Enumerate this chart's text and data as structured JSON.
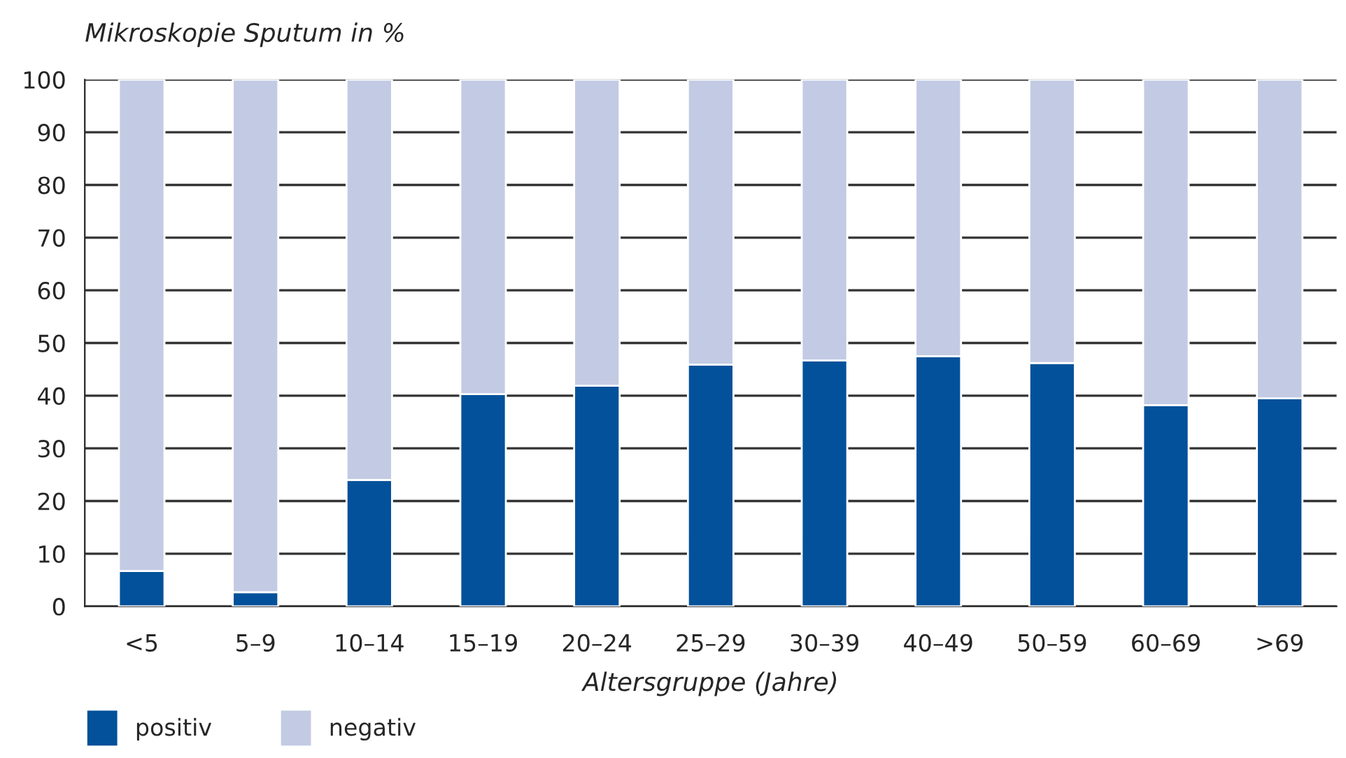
{
  "chart_data": {
    "type": "bar",
    "stacked": true,
    "ylabel": "Mikroskopie Sputum in %",
    "xlabel": "Altersgruppe (Jahre)",
    "categories": [
      "<5",
      "5–9",
      "10–14",
      "15–19",
      "20–24",
      "25–29",
      "30–39",
      "40–49",
      "50–59",
      "60–69",
      ">69"
    ],
    "series": [
      {
        "name": "positiv",
        "color": "#03519a",
        "values": [
          6.7,
          2.7,
          24.0,
          40.3,
          41.9,
          45.9,
          46.7,
          47.5,
          46.2,
          38.2,
          39.5
        ]
      },
      {
        "name": "negativ",
        "color": "#c3cbe4",
        "values": [
          93.3,
          97.3,
          76.0,
          59.7,
          58.1,
          54.1,
          53.3,
          52.5,
          53.8,
          61.8,
          60.5
        ]
      }
    ],
    "ylim": [
      0,
      100
    ],
    "yticks": [
      0,
      10,
      20,
      30,
      40,
      50,
      60,
      70,
      80,
      90,
      100
    ],
    "grid": "y",
    "legend": "bottom left"
  }
}
